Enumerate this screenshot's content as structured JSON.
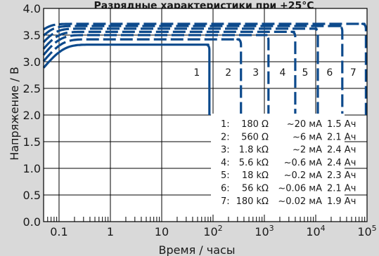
{
  "chart_data": {
    "type": "line",
    "title": "Разрядные характеристики при +25°С",
    "xlabel": "Время / часы",
    "ylabel": "Напряжение / В",
    "x_scale": "log",
    "xlim": [
      0.05,
      100000
    ],
    "ylim": [
      0.0,
      4.0
    ],
    "grid": true,
    "y_ticks": [
      "0.0",
      "0.5",
      "1.0",
      "1.5",
      "2.0",
      "2.5",
      "3.0",
      "3.5",
      "4.0"
    ],
    "x_ticks": [
      {
        "value": 0.1,
        "label": "0.1",
        "exp": ""
      },
      {
        "value": 1,
        "label": "1",
        "exp": ""
      },
      {
        "value": 10,
        "label": "10",
        "exp": ""
      },
      {
        "value": 100,
        "label": "10",
        "exp": "2"
      },
      {
        "value": 1000,
        "label": "10",
        "exp": "3"
      },
      {
        "value": 10000,
        "label": "10",
        "exp": "4"
      },
      {
        "value": 100000,
        "label": "10",
        "exp": "5"
      }
    ],
    "series": [
      {
        "name": "1",
        "plateau": 3.32,
        "end_hours": 85
      },
      {
        "name": "2",
        "plateau": 3.42,
        "end_hours": 350
      },
      {
        "name": "3",
        "plateau": 3.5,
        "end_hours": 1200
      },
      {
        "name": "4",
        "plateau": 3.56,
        "end_hours": 4000
      },
      {
        "name": "5",
        "plateau": 3.62,
        "end_hours": 11000
      },
      {
        "name": "6",
        "plateau": 3.67,
        "end_hours": 33000
      },
      {
        "name": "7",
        "plateau": 3.71,
        "end_hours": 95000
      }
    ],
    "legend_table": [
      {
        "id": "1:",
        "resistance": "180 Ω",
        "current": "~20 мА",
        "capacity": "1.5 Ач"
      },
      {
        "id": "2:",
        "resistance": "560 Ω",
        "current": "~6 мА",
        "capacity": "2.1 Ач"
      },
      {
        "id": "3:",
        "resistance": "1.8 kΩ",
        "current": "~2 мА",
        "capacity": "2.4 Ач"
      },
      {
        "id": "4:",
        "resistance": "5.6 kΩ",
        "current": "~0.6 мА",
        "capacity": "2.4 Ач"
      },
      {
        "id": "5:",
        "resistance": "18 kΩ",
        "current": "~0.2 мА",
        "capacity": "2.3 Ач"
      },
      {
        "id": "6:",
        "resistance": "56 kΩ",
        "current": "~0.06 мА",
        "capacity": "2.1 Ач"
      },
      {
        "id": "7:",
        "resistance": "180 kΩ",
        "current": "~0.02 мА",
        "capacity": "1.9 Ач"
      }
    ],
    "colors": {
      "curve": "#0d4a8c",
      "grid": "#000000",
      "plot_bg": "#ffffff",
      "page_bg": "#d9d9d9"
    }
  }
}
